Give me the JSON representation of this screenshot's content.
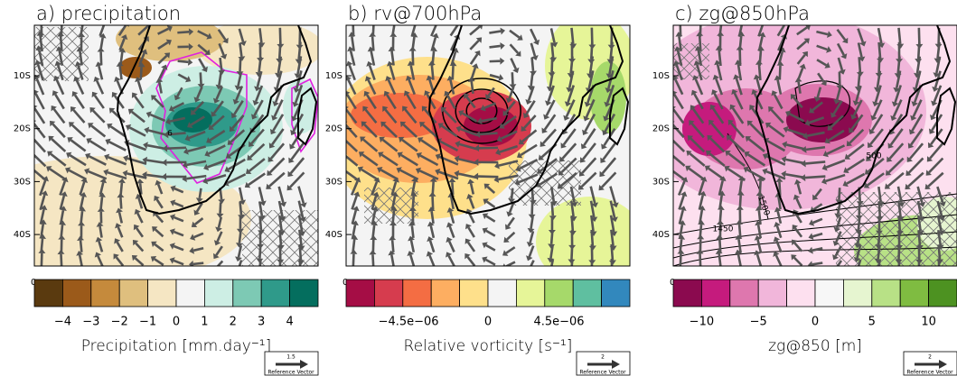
{
  "panels": [
    {
      "title": "a) precipitation",
      "lat_ticks": [
        "10S",
        "20S",
        "30S",
        "40S"
      ],
      "corner_label": "0",
      "colorbar": {
        "colors": [
          "#5a3a0f",
          "#9b5a1a",
          "#c58a3c",
          "#dfbf7e",
          "#f5e6c3",
          "#f4f4f4",
          "#cdeee4",
          "#7dc9b4",
          "#2f9a8a",
          "#046e5e"
        ],
        "tick_labels": [
          "−4",
          "−3",
          "−2",
          "−1",
          "0",
          "1",
          "2",
          "3",
          "4"
        ],
        "title": "Precipitation  [mm.day⁻¹]"
      },
      "contour_labels": [
        "6"
      ],
      "reference_vector": {
        "magnitude": "1.5",
        "label": "Reference Vector"
      }
    },
    {
      "title": "b) rv@700hPa",
      "lat_ticks": [
        "10S",
        "20S",
        "30S",
        "40S"
      ],
      "corner_label": "0",
      "colorbar": {
        "colors": [
          "#a50d45",
          "#d63c4e",
          "#f46d43",
          "#fdae61",
          "#fee08b",
          "#f4f4f4",
          "#e6f598",
          "#a6d96a",
          "#5fbfa0",
          "#3288bd"
        ],
        "tick_labels": [
          "−4.5e−06",
          "0",
          "4.5e−06"
        ],
        "title": "Relative vorticity  [s⁻¹]"
      },
      "contour_labels": [],
      "reference_vector": {
        "magnitude": "2",
        "label": "Reference Vector"
      }
    },
    {
      "title": "c) zg@850hPa",
      "lat_ticks": [
        "10S",
        "20S",
        "30S",
        "40S"
      ],
      "corner_label": "0",
      "colorbar": {
        "colors": [
          "#8b0a4f",
          "#c51b7d",
          "#de77ae",
          "#f1b6da",
          "#fde0ef",
          "#f7f7f7",
          "#e6f5d0",
          "#b8e186",
          "#7fbc41",
          "#4d9221"
        ],
        "tick_labels": [
          "−10",
          "−5",
          "0",
          "5",
          "10"
        ],
        "title": "zg@850  [m]"
      },
      "contour_labels": [
        "1500",
        "500",
        "1450"
      ],
      "reference_vector": {
        "magnitude": "2",
        "label": "Reference Vector"
      }
    }
  ]
}
